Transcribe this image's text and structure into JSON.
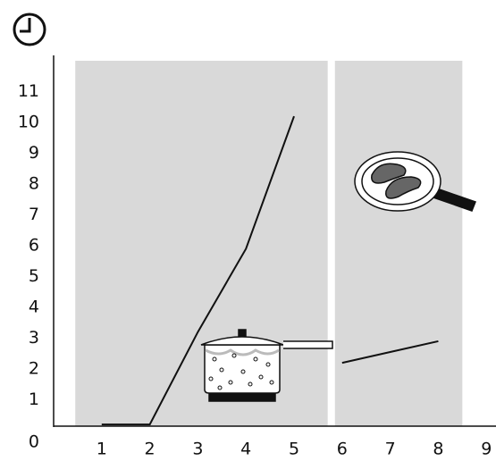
{
  "chart_data": {
    "type": "line",
    "bands": [
      [
        0.45,
        5.7
      ],
      [
        5.85,
        8.5
      ]
    ],
    "band_color": "#d9d9d9",
    "series": [
      {
        "color": "#111111",
        "x": [
          1,
          2,
          3,
          4,
          5
        ],
        "values": [
          0.2,
          0.2,
          3.2,
          5.9,
          10.2
        ]
      },
      {
        "color": "#111111",
        "x": [
          6,
          7,
          8
        ],
        "values": [
          2.2,
          2.55,
          2.9
        ]
      }
    ],
    "xlim": [
      0,
      9.2
    ],
    "ylim": [
      0,
      12
    ],
    "xticks": [
      1,
      2,
      3,
      4,
      5,
      6,
      7,
      8,
      9
    ],
    "yticks": [
      0,
      1,
      2,
      3,
      4,
      5,
      6,
      7,
      8,
      9,
      10,
      11
    ]
  }
}
